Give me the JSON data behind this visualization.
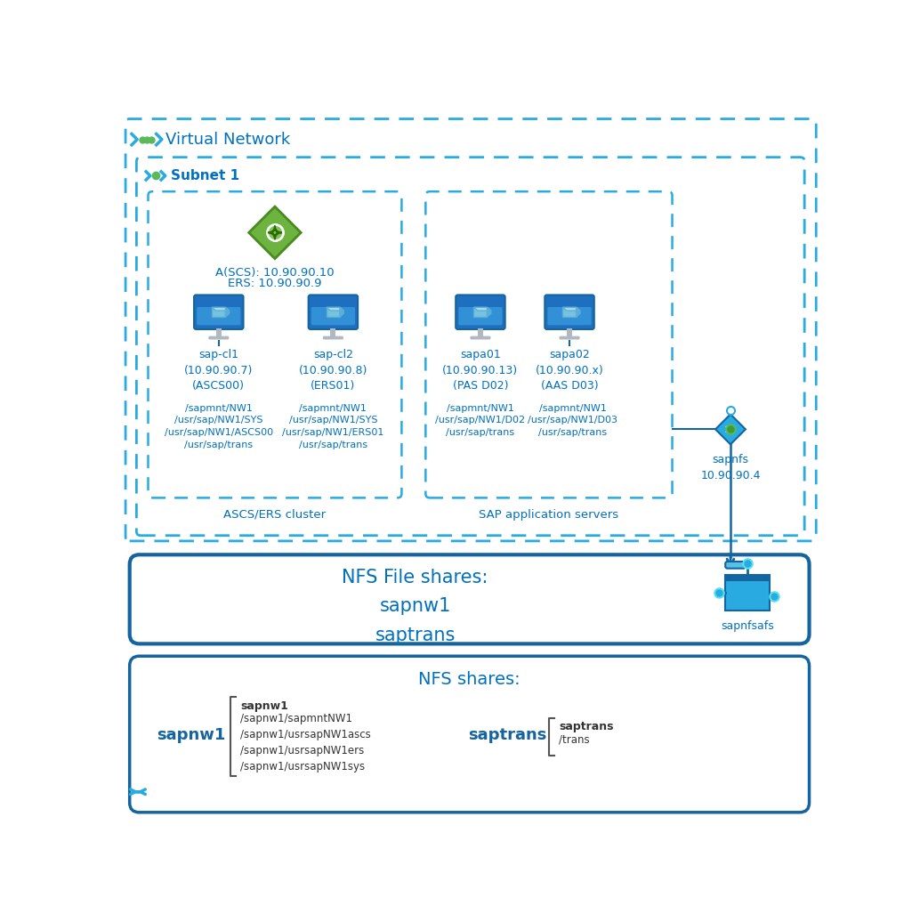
{
  "bg_color": "#ffffff",
  "dblue": "#29ABE2",
  "sblue": "#1464A0",
  "tblue": "#0070C0",
  "vnet_label": "Virtual Network",
  "subnet_label": "Subnet 1",
  "ascs_cluster_label": "ASCS/ERS cluster",
  "sap_app_label": "SAP application servers",
  "nfs_box_label": "NFS File shares:\nsapnw1\nsaptrans",
  "nfs_shares_title": "NFS shares:",
  "lb_label_line1": "A(SCS): 10.90.90.10",
  "lb_label_line2": "ERS: 10.90.90.9",
  "sapnfs_label": "sapnfs\n10.90.90.4",
  "sapnfsafs_label": "sapnfsafs",
  "vm_labels": [
    "sap-cl1\n(10.90.90.7)\n(ASCS00)",
    "sap-cl2\n(10.90.90.8)\n(ERS01)",
    "sapa01\n(10.90.90.13)\n(PAS D02)",
    "sapa02\n(10.90.90.x)\n(AAS D03)"
  ],
  "vm_mount_labels": [
    "/sapmnt/NW1\n/usr/sap/NW1/SYS\n/usr/sap/NW1/ASCS00\n/usr/sap/trans",
    "/sapmnt/NW1\n/usr/sap/NW1/SYS\n/usr/sap/NW1/ERS01\n/usr/sap/trans",
    "/sapmnt/NW1\n/usr/sap/NW1/D02\n/usr/sap/trans",
    "/sapmnt/NW1\n/usr/sap/NW1/D03\n/usr/sap/trans"
  ],
  "sapnw1_bold": "sapnw1",
  "sapnw1_items": "/sapnw1/sapmntNW1\n/sapnw1/usrsapNW1ascs\n/sapnw1/usrsapNW1ers\n/sapnw1/usrsapNW1sys",
  "saptrans_bold": "saptrans",
  "saptrans_items": "/trans"
}
